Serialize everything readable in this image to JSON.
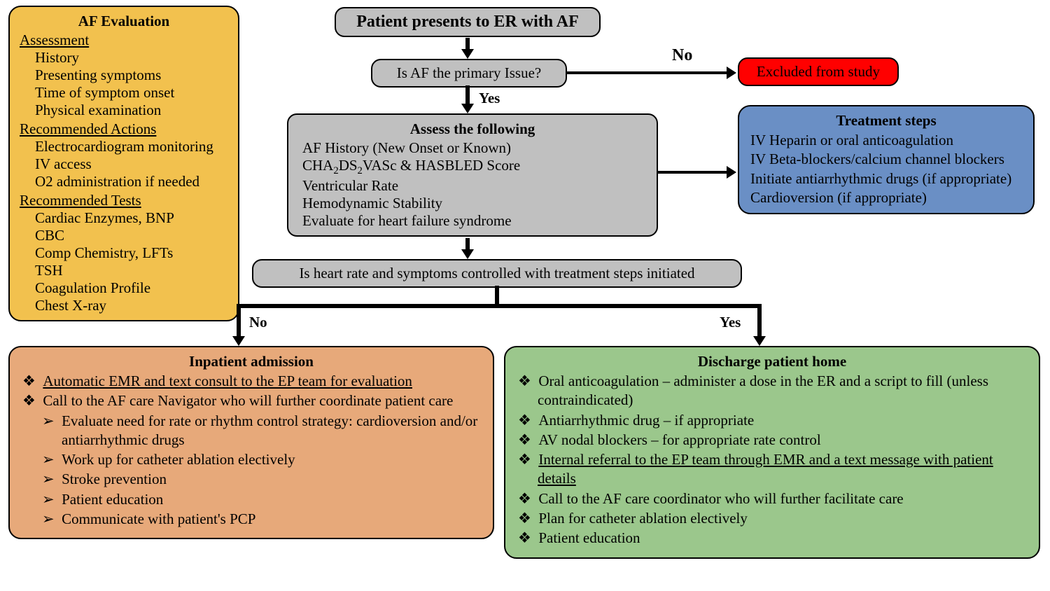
{
  "colors": {
    "yellow": "#f2c14e",
    "gray": "#c0c0c0",
    "red": "#ff0000",
    "blue": "#6a8fc5",
    "orange": "#e7a97a",
    "green": "#9bc78c",
    "black": "#000000",
    "white": "#ffffff"
  },
  "flowchart_type": "flowchart",
  "af_eval": {
    "title": "AF Evaluation",
    "sections": [
      {
        "head": "Assessment",
        "items": [
          "History",
          "Presenting symptoms",
          "Time of symptom onset",
          "Physical examination"
        ]
      },
      {
        "head": "Recommended Actions",
        "items": [
          "Electrocardiogram monitoring",
          "IV access",
          "O2 administration if needed"
        ]
      },
      {
        "head": "Recommended Tests",
        "items": [
          "Cardiac Enzymes, BNP",
          "CBC",
          "Comp Chemistry, LFTs",
          "TSH",
          "Coagulation Profile",
          "Chest X-ray"
        ]
      }
    ]
  },
  "top": "Patient presents to ER with AF",
  "q1": "Is AF the primary Issue?",
  "no1": "No",
  "excluded": "Excluded from study",
  "yes1": "Yes",
  "assess": {
    "title": "Assess the following",
    "items": [
      "AF History (New Onset or Known)",
      "CHA₂DS₂VASc & HASBLED Score",
      "Ventricular Rate",
      "Hemodynamic Stability",
      "Evaluate for heart failure syndrome"
    ]
  },
  "treat": {
    "title": "Treatment steps",
    "items": [
      "IV Heparin or oral anticoagulation",
      "IV Beta-blockers/calcium channel blockers",
      "Initiate antiarrhythmic drugs (if appropriate)",
      "Cardioversion (if appropriate)"
    ]
  },
  "q2": "Is heart rate and symptoms controlled with treatment steps initiated",
  "no2": "No",
  "yes2": "Yes",
  "inpatient": {
    "title": "Inpatient admission",
    "b1_u": "Automatic EMR and text consult to the EP team for evaluation",
    "b2": "Call to the AF care Navigator who will further coordinate patient care",
    "subs": [
      "Evaluate need for rate or rhythm control strategy: cardioversion and/or antiarrhythmic drugs",
      "Work up for catheter ablation electively",
      "Stroke prevention",
      "Patient education",
      "Communicate with patient's PCP"
    ]
  },
  "discharge": {
    "title": "Discharge patient home",
    "b1": "Oral anticoagulation  – administer a dose in the ER and a script to fill (unless contraindicated)",
    "b2": "Antiarrhythmic drug – if appropriate",
    "b3": "AV nodal blockers – for appropriate rate control",
    "b4_u": "Internal referral to the EP team through EMR and a text message with patient details",
    "b5": "Call to the AF care coordinator who will further facilitate care",
    "b6": "Plan for catheter ablation electively",
    "b7": "Patient education"
  },
  "bullet_glyph": "❖",
  "sub_glyph": "➢"
}
